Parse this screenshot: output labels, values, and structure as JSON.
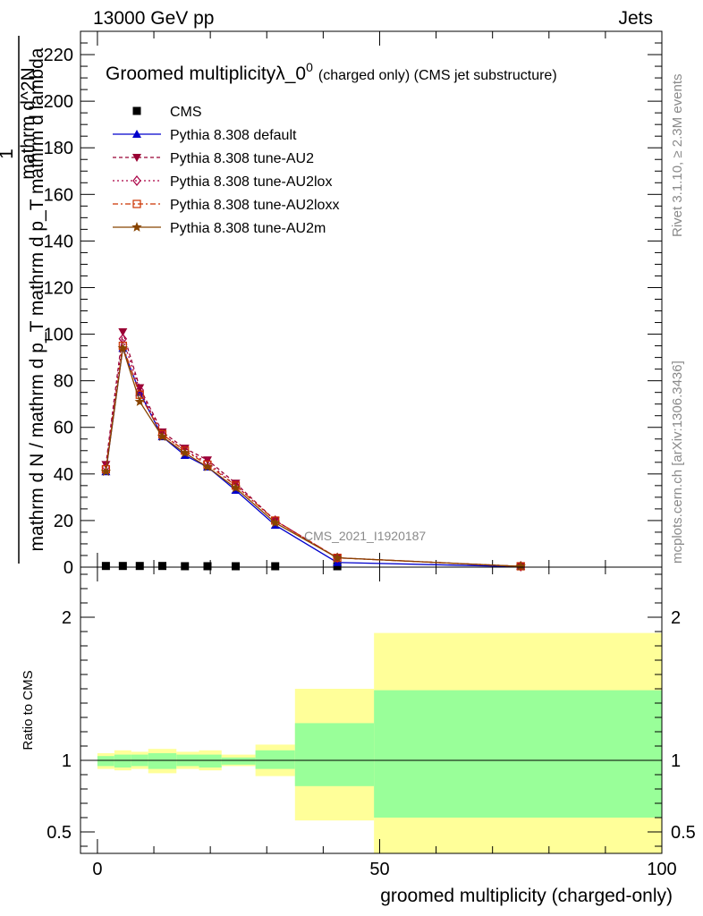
{
  "header": {
    "left": "13000 GeV pp",
    "right": "Jets"
  },
  "side_text": {
    "rivet": "Rivet 3.1.10, ≥ 2.3M events",
    "mcplots": "mcplots.cern.ch [arXiv:1306.3436]"
  },
  "chart_data": [
    {
      "type": "line",
      "panel": "main",
      "title_main": "Groomed multiplicityλ_0",
      "title_sup": "0",
      "title_suffix": "(charged only) (CMS jet substructure)",
      "ylabel_numer": "1",
      "ylabel_denom": "mathrm d N / mathrm d p_T mathrm d p_T mathrm d lambda",
      "ylabel_top": "mathrm d^2N",
      "watermark": "CMS_2021_I1920187",
      "xlim": [
        -3,
        100
      ],
      "ylim": [
        0,
        230
      ],
      "y_ticks": [
        0,
        20,
        40,
        60,
        80,
        100,
        120,
        140,
        160,
        180,
        200,
        220
      ],
      "legend_position": "top-left",
      "x": [
        1.5,
        4.5,
        7.5,
        11.5,
        15.5,
        19.5,
        24.5,
        31.5,
        42.5,
        75
      ],
      "series": [
        {
          "name": "CMS",
          "color": "#000000",
          "marker": "square",
          "dash": "",
          "values": [
            0.5,
            0.5,
            0.5,
            0.5,
            0.4,
            0.4,
            0.3,
            0.3,
            0.2,
            null
          ]
        },
        {
          "name": "Pythia 8.308 default",
          "color": "#0000cc",
          "marker": "triangle-up",
          "dash": "",
          "values": [
            41,
            94,
            75,
            56,
            48,
            43,
            33,
            18,
            2,
            0.2
          ]
        },
        {
          "name": "Pythia 8.308 tune-AU2",
          "color": "#990033",
          "marker": "triangle-down",
          "dash": "4,3",
          "values": [
            44,
            101,
            77,
            58,
            51,
            46,
            36,
            20,
            4,
            0.3
          ]
        },
        {
          "name": "Pythia 8.308 tune-AU2lox",
          "color": "#aa0044",
          "marker": "diamond",
          "dash": "2,3",
          "values": [
            43,
            98,
            76,
            57,
            50,
            45,
            35,
            20,
            4,
            0.3
          ]
        },
        {
          "name": "Pythia 8.308 tune-AU2loxx",
          "color": "#cc3300",
          "marker": "square-open",
          "dash": "6,3,2,3",
          "values": [
            42,
            95,
            74,
            57,
            50,
            44,
            35,
            20,
            4,
            0.3
          ]
        },
        {
          "name": "Pythia 8.308 tune-AU2m",
          "color": "#884400",
          "marker": "star",
          "dash": "",
          "values": [
            41,
            94,
            71,
            56,
            49,
            43,
            34,
            19,
            4,
            0.3
          ]
        }
      ]
    },
    {
      "type": "area",
      "panel": "ratio",
      "ylabel": "Ratio to CMS",
      "xlabel": "groomed multiplicity (charged-only)",
      "xlim": [
        -3,
        100
      ],
      "ylim": [
        0.35,
        2.35
      ],
      "x_ticks": [
        0,
        50,
        100
      ],
      "y_ticks": [
        0.5,
        1,
        2
      ],
      "bins": [
        [
          0,
          3,
          0.96,
          1.03,
          0.94,
          1.05
        ],
        [
          3,
          6,
          0.95,
          1.04,
          0.93,
          1.07
        ],
        [
          6,
          9,
          0.96,
          1.04,
          0.94,
          1.06
        ],
        [
          9,
          14,
          0.94,
          1.05,
          0.91,
          1.08
        ],
        [
          14,
          18,
          0.96,
          1.04,
          0.94,
          1.06
        ],
        [
          18,
          22,
          0.95,
          1.04,
          0.93,
          1.07
        ],
        [
          22,
          28,
          0.97,
          1.02,
          0.96,
          1.04
        ],
        [
          28,
          35,
          0.94,
          1.07,
          0.89,
          1.11
        ],
        [
          35,
          49,
          0.82,
          1.26,
          0.58,
          1.5
        ],
        [
          49,
          100,
          0.6,
          1.49,
          0.35,
          1.89
        ]
      ],
      "colors": {
        "inner": "#99ff99",
        "outer": "#ffff99"
      }
    }
  ]
}
